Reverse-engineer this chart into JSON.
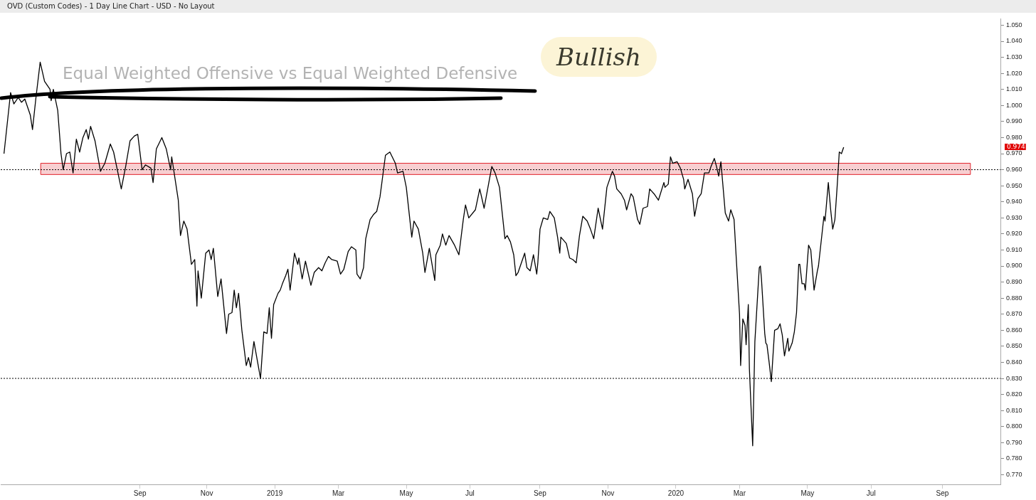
{
  "chart_data": {
    "type": "line",
    "title": "Equal Weighted Offensive vs Equal Weighted Defensive",
    "subtitle": "OVD (Custom Codes) - 1 Day Line Chart - USD - No Layout",
    "color": "#000000",
    "x": [
      "2018-05-06",
      "2018-05-12",
      "2018-05-15",
      "2018-05-19",
      "2018-05-22",
      "2018-05-25",
      "2018-05-30",
      "2018-06-01",
      "2018-06-04",
      "2018-06-08",
      "2018-06-12",
      "2018-06-17",
      "2018-06-18",
      "2018-06-20",
      "2018-06-24",
      "2018-06-27",
      "2018-06-29",
      "2018-07-02",
      "2018-07-05",
      "2018-07-08",
      "2018-07-11",
      "2018-07-14",
      "2018-07-17",
      "2018-07-20",
      "2018-07-22",
      "2018-07-24",
      "2018-07-28",
      "2018-08-02",
      "2018-08-06",
      "2018-08-11",
      "2018-08-14",
      "2018-08-21",
      "2018-08-25",
      "2018-08-29",
      "2018-09-02",
      "2018-09-05",
      "2018-09-09",
      "2018-09-12",
      "2018-09-17",
      "2018-09-19",
      "2018-09-22",
      "2018-09-27",
      "2018-10-01",
      "2018-10-05",
      "2018-10-06",
      "2018-10-12",
      "2018-10-14",
      "2018-10-17",
      "2018-10-20",
      "2018-10-24",
      "2018-10-27",
      "2018-10-29",
      "2018-10-30",
      "2018-11-02",
      "2018-11-06",
      "2018-11-09",
      "2018-11-11",
      "2018-11-13",
      "2018-11-17",
      "2018-11-20",
      "2018-11-25",
      "2018-11-27",
      "2018-11-30",
      "2018-12-02",
      "2018-12-04",
      "2018-12-06",
      "2018-12-09",
      "2018-12-13",
      "2018-12-15",
      "2018-12-17",
      "2018-12-20",
      "2018-12-26",
      "2018-12-29",
      "2019-01-01",
      "2019-01-03",
      "2019-01-05",
      "2019-01-07",
      "2019-01-11",
      "2019-01-13",
      "2019-01-15",
      "2019-01-18",
      "2019-01-20",
      "2019-01-22",
      "2019-01-26",
      "2019-01-29",
      "2019-01-30",
      "2019-02-02",
      "2019-02-05",
      "2019-02-10",
      "2019-02-13",
      "2019-02-17",
      "2019-02-20",
      "2019-02-23",
      "2019-02-26",
      "2019-03-01",
      "2019-03-06",
      "2019-03-09",
      "2019-03-12",
      "2019-03-16",
      "2019-03-19",
      "2019-03-23",
      "2019-03-24",
      "2019-03-27",
      "2019-03-30",
      "2019-04-01",
      "2019-04-05",
      "2019-04-08",
      "2019-04-11",
      "2019-04-14",
      "2019-04-19",
      "2019-04-23",
      "2019-04-28",
      "2019-04-30",
      "2019-05-05",
      "2019-05-08",
      "2019-05-13",
      "2019-05-15",
      "2019-05-19",
      "2019-05-23",
      "2019-05-25",
      "2019-05-29",
      "2019-06-03",
      "2019-06-04",
      "2019-06-08",
      "2019-06-10",
      "2019-06-13",
      "2019-06-16",
      "2019-06-21",
      "2019-06-25",
      "2019-06-29",
      "2019-07-01",
      "2019-07-04",
      "2019-07-10",
      "2019-07-14",
      "2019-07-18",
      "2019-07-25",
      "2019-07-28",
      "2019-08-01",
      "2019-08-06",
      "2019-08-08",
      "2019-08-11",
      "2019-08-14",
      "2019-08-16",
      "2019-08-18",
      "2019-08-21",
      "2019-08-24",
      "2019-08-26",
      "2019-08-29",
      "2019-09-01",
      "2019-09-04",
      "2019-09-05",
      "2019-09-07",
      "2019-09-10",
      "2019-09-14",
      "2019-09-16",
      "2019-09-20",
      "2019-09-23",
      "2019-09-25",
      "2019-09-26",
      "2019-10-01",
      "2019-10-04",
      "2019-10-07",
      "2019-10-10",
      "2019-10-13",
      "2019-10-16",
      "2019-10-20",
      "2019-10-23",
      "2019-10-26",
      "2019-10-30",
      "2019-11-03",
      "2019-11-07",
      "2019-11-12",
      "2019-11-14",
      "2019-11-16",
      "2019-11-20",
      "2019-11-23",
      "2019-11-25",
      "2019-11-29",
      "2019-12-01",
      "2019-12-05",
      "2019-12-07",
      "2019-12-10",
      "2019-12-14",
      "2019-12-16",
      "2019-12-20",
      "2019-12-24",
      "2019-12-29",
      "2019-12-30",
      "2020-01-02",
      "2020-01-04",
      "2020-01-06",
      "2020-01-10",
      "2020-01-13",
      "2020-01-16",
      "2020-01-17",
      "2020-01-20",
      "2020-01-24",
      "2020-01-26",
      "2020-01-29",
      "2020-02-01",
      "2020-02-04",
      "2020-02-08",
      "2020-02-10",
      "2020-02-13",
      "2020-02-15",
      "2020-02-17",
      "2020-02-19",
      "2020-02-23",
      "2020-02-26",
      "2020-02-28",
      "2020-03-02",
      "2020-03-04",
      "2020-03-07",
      "2020-03-08",
      "2020-03-10",
      "2020-03-12",
      "2020-03-13",
      "2020-03-15",
      "2020-03-16",
      "2020-03-19",
      "2020-03-21",
      "2020-03-25",
      "2020-03-26",
      "2020-03-27",
      "2020-03-30",
      "2020-03-31",
      "2020-04-01",
      "2020-04-03",
      "2020-04-05",
      "2020-04-08",
      "2020-04-11",
      "2020-04-13",
      "2020-04-15",
      "2020-04-17",
      "2020-04-20",
      "2020-04-21",
      "2020-04-24",
      "2020-04-26",
      "2020-04-28",
      "2020-04-30",
      "2020-05-01",
      "2020-05-03",
      "2020-05-05",
      "2020-05-06",
      "2020-05-09",
      "2020-05-11",
      "2020-05-14",
      "2020-05-17",
      "2020-05-18",
      "2020-05-23",
      "2020-05-24",
      "2020-05-27",
      "2020-05-29",
      "2020-05-31",
      "2020-06-02",
      "2020-06-04",
      "2020-06-06",
      "2020-06-08",
      "2020-06-10"
    ],
    "values": [
      0.97,
      1.008,
      1.001,
      1.005,
      1.002,
      1.004,
      0.994,
      0.985,
      1.004,
      1.027,
      1.015,
      1.01,
      1.003,
      1.01,
      0.997,
      0.97,
      0.96,
      0.97,
      0.971,
      0.958,
      0.979,
      0.971,
      0.98,
      0.985,
      0.979,
      0.987,
      0.978,
      0.959,
      0.964,
      0.976,
      0.971,
      0.948,
      0.962,
      0.978,
      0.981,
      0.982,
      0.96,
      0.963,
      0.961,
      0.952,
      0.973,
      0.98,
      0.973,
      0.96,
      0.968,
      0.941,
      0.919,
      0.928,
      0.923,
      0.901,
      0.904,
      0.875,
      0.897,
      0.88,
      0.908,
      0.91,
      0.904,
      0.911,
      0.881,
      0.892,
      0.858,
      0.87,
      0.871,
      0.885,
      0.874,
      0.883,
      0.86,
      0.838,
      0.843,
      0.837,
      0.853,
      0.83,
      0.859,
      0.858,
      0.874,
      0.855,
      0.876,
      0.883,
      0.885,
      0.889,
      0.894,
      0.898,
      0.885,
      0.908,
      0.901,
      0.905,
      0.892,
      0.903,
      0.888,
      0.896,
      0.899,
      0.897,
      0.902,
      0.906,
      0.904,
      0.903,
      0.895,
      0.898,
      0.909,
      0.912,
      0.91,
      0.895,
      0.892,
      0.899,
      0.917,
      0.929,
      0.932,
      0.934,
      0.943,
      0.969,
      0.971,
      0.964,
      0.958,
      0.959,
      0.949,
      0.918,
      0.928,
      0.923,
      0.908,
      0.896,
      0.911,
      0.891,
      0.907,
      0.913,
      0.92,
      0.913,
      0.919,
      0.913,
      0.907,
      0.929,
      0.938,
      0.93,
      0.935,
      0.948,
      0.936,
      0.962,
      0.958,
      0.949,
      0.917,
      0.919,
      0.915,
      0.907,
      0.894,
      0.896,
      0.902,
      0.908,
      0.899,
      0.897,
      0.907,
      0.895,
      0.902,
      0.923,
      0.93,
      0.929,
      0.934,
      0.93,
      0.918,
      0.908,
      0.918,
      0.914,
      0.905,
      0.904,
      0.902,
      0.919,
      0.931,
      0.928,
      0.923,
      0.917,
      0.936,
      0.923,
      0.949,
      0.959,
      0.956,
      0.948,
      0.945,
      0.941,
      0.935,
      0.945,
      0.943,
      0.929,
      0.926,
      0.936,
      0.937,
      0.948,
      0.945,
      0.941,
      0.952,
      0.949,
      0.951,
      0.968,
      0.964,
      0.965,
      0.961,
      0.954,
      0.948,
      0.954,
      0.945,
      0.931,
      0.942,
      0.945,
      0.958,
      0.958,
      0.962,
      0.967,
      0.962,
      0.956,
      0.965,
      0.933,
      0.928,
      0.935,
      0.929,
      0.905,
      0.87,
      0.838,
      0.867,
      0.863,
      0.851,
      0.876,
      0.836,
      0.788,
      0.853,
      0.899,
      0.9,
      0.892,
      0.858,
      0.852,
      0.851,
      0.84,
      0.828,
      0.86,
      0.861,
      0.864,
      0.857,
      0.844,
      0.855,
      0.847,
      0.852,
      0.859,
      0.871,
      0.901,
      0.901,
      0.889,
      0.889,
      0.885,
      0.913,
      0.91,
      0.885,
      0.897,
      0.9,
      0.931,
      0.928,
      0.952,
      0.936,
      0.923,
      0.929,
      0.949,
      0.971,
      0.97,
      0.974
    ],
    "xlim": [
      "2018-05-03",
      "2020-10-31"
    ],
    "xticks": [
      {
        "value": "2018-09-07",
        "label": "Sep"
      },
      {
        "value": "2018-11-07",
        "label": "Nov"
      },
      {
        "value": "2019-01-08",
        "label": "2019"
      },
      {
        "value": "2019-03-07",
        "label": "Mar"
      },
      {
        "value": "2019-05-08",
        "label": "May"
      },
      {
        "value": "2019-07-05",
        "label": "Jul"
      },
      {
        "value": "2019-09-07",
        "label": "Sep"
      },
      {
        "value": "2019-11-08",
        "label": "Nov"
      },
      {
        "value": "2020-01-09",
        "label": "2020"
      },
      {
        "value": "2020-03-07",
        "label": "Mar"
      },
      {
        "value": "2020-05-08",
        "label": "May"
      },
      {
        "value": "2020-07-05",
        "label": "Jul"
      },
      {
        "value": "2020-09-08",
        "label": "Sep"
      }
    ],
    "ylim": [
      0.764,
      1.054
    ],
    "yticks": [
      {
        "value": 0.77,
        "label": "0.770"
      },
      {
        "value": 0.78,
        "label": "0.780"
      },
      {
        "value": 0.79,
        "label": "0.790"
      },
      {
        "value": 0.8,
        "label": "0.800"
      },
      {
        "value": 0.81,
        "label": "0.810"
      },
      {
        "value": 0.82,
        "label": "0.820"
      },
      {
        "value": 0.83,
        "label": "0.830"
      },
      {
        "value": 0.84,
        "label": "0.840"
      },
      {
        "value": 0.85,
        "label": "0.850"
      },
      {
        "value": 0.86,
        "label": "0.860"
      },
      {
        "value": 0.87,
        "label": "0.870"
      },
      {
        "value": 0.88,
        "label": "0.880"
      },
      {
        "value": 0.89,
        "label": "0.890"
      },
      {
        "value": 0.9,
        "label": "0.900"
      },
      {
        "value": 0.91,
        "label": "0.910"
      },
      {
        "value": 0.92,
        "label": "0.920"
      },
      {
        "value": 0.93,
        "label": "0.930"
      },
      {
        "value": 0.94,
        "label": "0.940"
      },
      {
        "value": 0.95,
        "label": "0.950"
      },
      {
        "value": 0.96,
        "label": "0.960"
      },
      {
        "value": 0.97,
        "label": "0.970"
      },
      {
        "value": 0.98,
        "label": "0.980"
      },
      {
        "value": 0.99,
        "label": "0.990"
      },
      {
        "value": 1.0,
        "label": "1.000"
      },
      {
        "value": 1.01,
        "label": "1.010"
      },
      {
        "value": 1.02,
        "label": "1.020"
      },
      {
        "value": 1.03,
        "label": "1.030"
      },
      {
        "value": 1.04,
        "label": "1.040"
      },
      {
        "value": 1.05,
        "label": "1.050"
      }
    ],
    "ref_lines": [
      {
        "axis": "y",
        "value": 0.96,
        "color": "#000000",
        "line_style": "dotted"
      },
      {
        "axis": "y",
        "value": 0.83,
        "color": "#000000",
        "line_style": "dotted"
      }
    ],
    "bands": [
      {
        "axis": "y",
        "from": 0.957,
        "to": 0.964,
        "color": "#e0242c"
      }
    ],
    "annotations": [
      "Bullish",
      "0.974"
    ],
    "legend": false
  }
}
